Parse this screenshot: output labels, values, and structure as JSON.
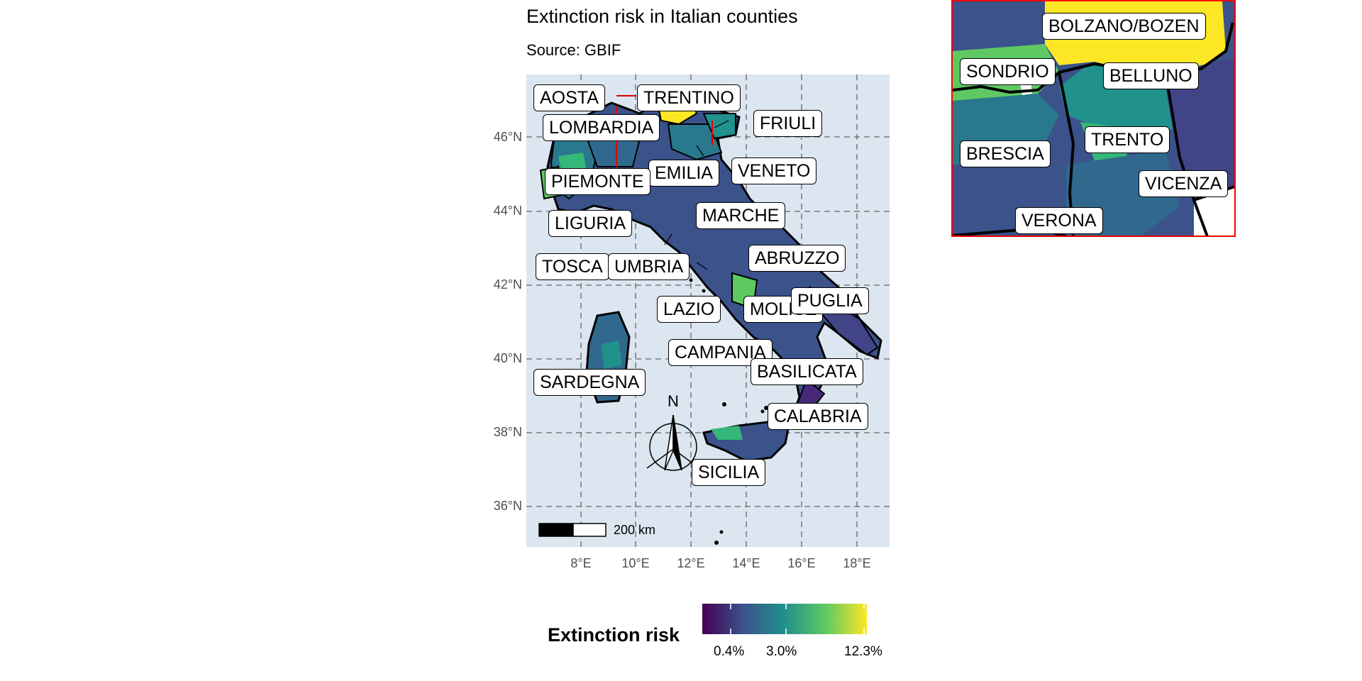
{
  "map": {
    "title": "Extinction risk in Italian counties",
    "subtitle": "Source: GBIF",
    "y_axis_ticks": [
      "46°N",
      "44°N",
      "42°N",
      "40°N",
      "38°N",
      "36°N"
    ],
    "x_axis_ticks": [
      "8°E",
      "10°E",
      "12°E",
      "14°E",
      "16°E",
      "18°E"
    ],
    "north_arrow_label": "N",
    "scale_bar_label": "200 km",
    "region_labels": [
      "AOSTA",
      "TRENTINO",
      "LOMBARDIA",
      "FRIULI",
      "EMILIA",
      "VENETO",
      "PIEMONTE",
      "MARCHE",
      "LIGURIA",
      "ABRUZZO",
      "TOSCA",
      "UMBRIA",
      "LAZIO",
      "MOLISE",
      "PUGLIA",
      "CAMPANIA",
      "SARDEGNA",
      "BASILICATA",
      "CALABRIA",
      "SICILIA"
    ]
  },
  "inset": {
    "labels": [
      "BOLZANO/BOZEN",
      "SONDRIO",
      "BELLUNO",
      "BRESCIA",
      "TRENTO",
      "VICENZA",
      "VERONA"
    ]
  },
  "legend": {
    "title": "Extinction risk",
    "labels": [
      "0.4%",
      "3.0%",
      "12.3%"
    ],
    "colors": [
      "#440154",
      "#3b528b",
      "#21918c",
      "#5ec962",
      "#fde725"
    ]
  }
}
